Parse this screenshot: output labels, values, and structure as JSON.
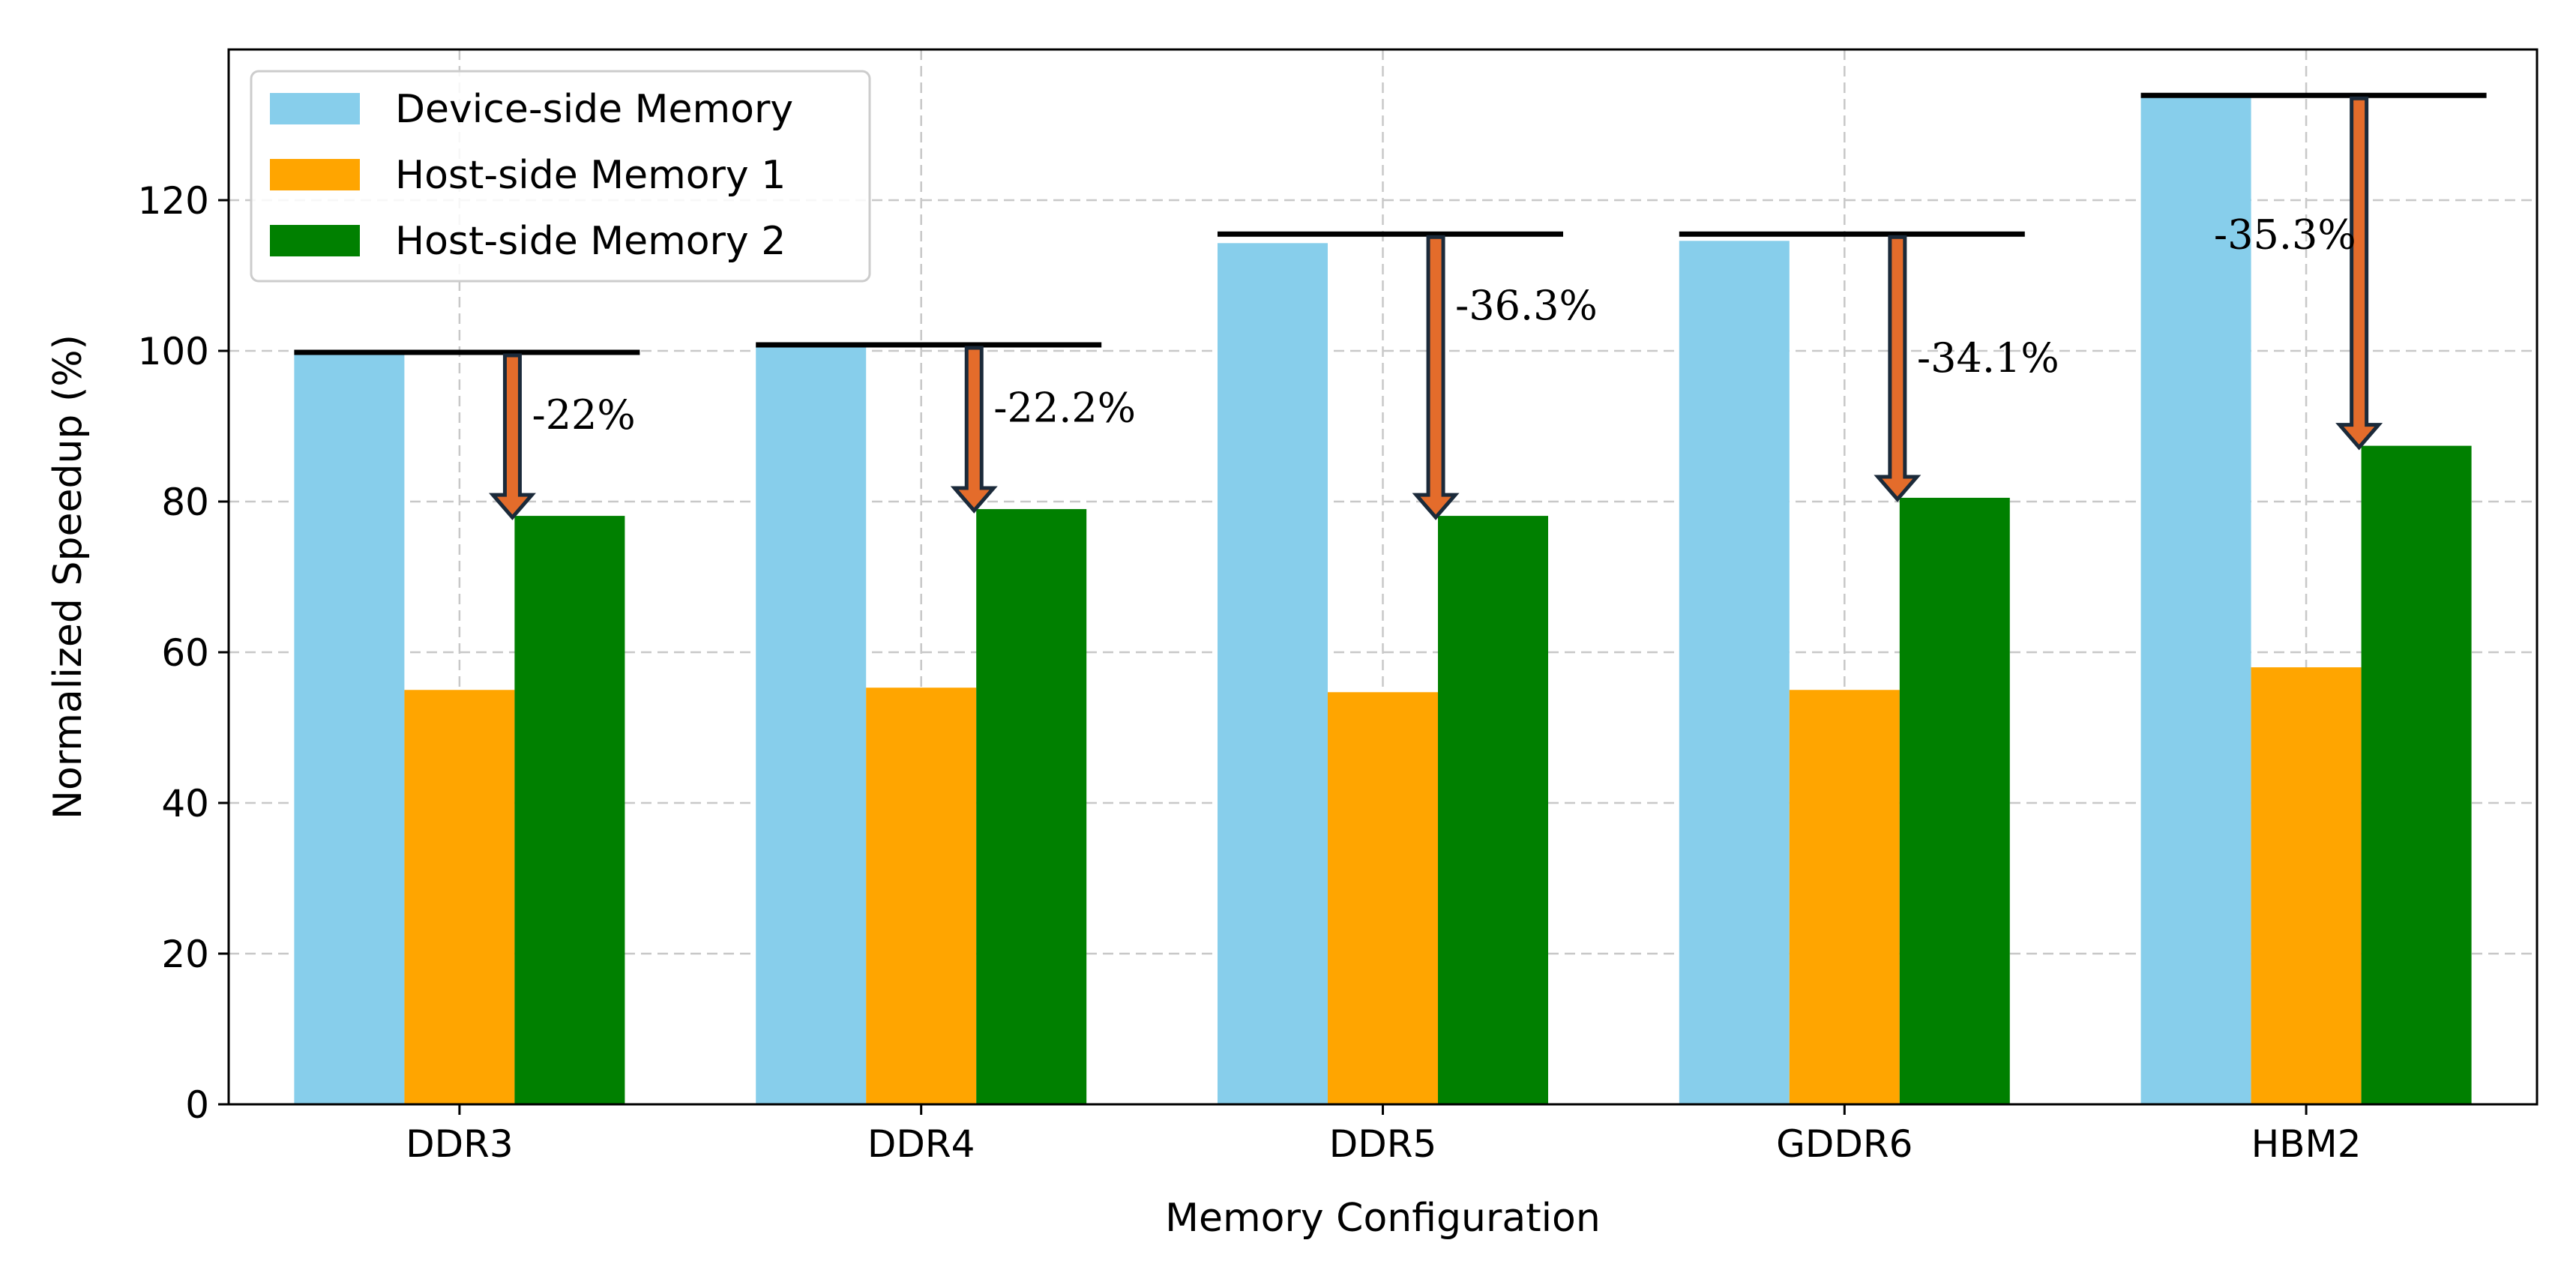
{
  "chart_data": {
    "type": "bar",
    "title": "",
    "xlabel": "Memory Configuration",
    "ylabel": "Normalized Speedup (%)",
    "ylim": [
      0,
      140
    ],
    "yticks": [
      "0",
      "20",
      "40",
      "60",
      "80",
      "100",
      "120"
    ],
    "grid": true,
    "legend_position": "top-left",
    "categories": [
      "DDR3",
      "DDR4",
      "DDR5",
      "GDDR6",
      "HBM2"
    ],
    "series": [
      {
        "name": "Device-side Memory",
        "color": "#87CEEB",
        "values": [
          99.5,
          100.5,
          114.3,
          114.6,
          133.9
        ]
      },
      {
        "name": "Host-side Memory 1",
        "color": "#FFA500",
        "values": [
          55.0,
          55.3,
          54.7,
          55.0,
          58.0
        ]
      },
      {
        "name": "Host-side Memory 2",
        "color": "#008000",
        "values": [
          78.1,
          79.0,
          78.1,
          80.5,
          87.4
        ]
      }
    ],
    "reference_lines": [
      99.8,
      100.8,
      115.5,
      115.5,
      133.9
    ],
    "arrow_color": "#E46C2B",
    "annotations": [
      "-22%",
      "-22.2%",
      "-36.3%",
      "-34.1%",
      "-35.3%"
    ]
  }
}
